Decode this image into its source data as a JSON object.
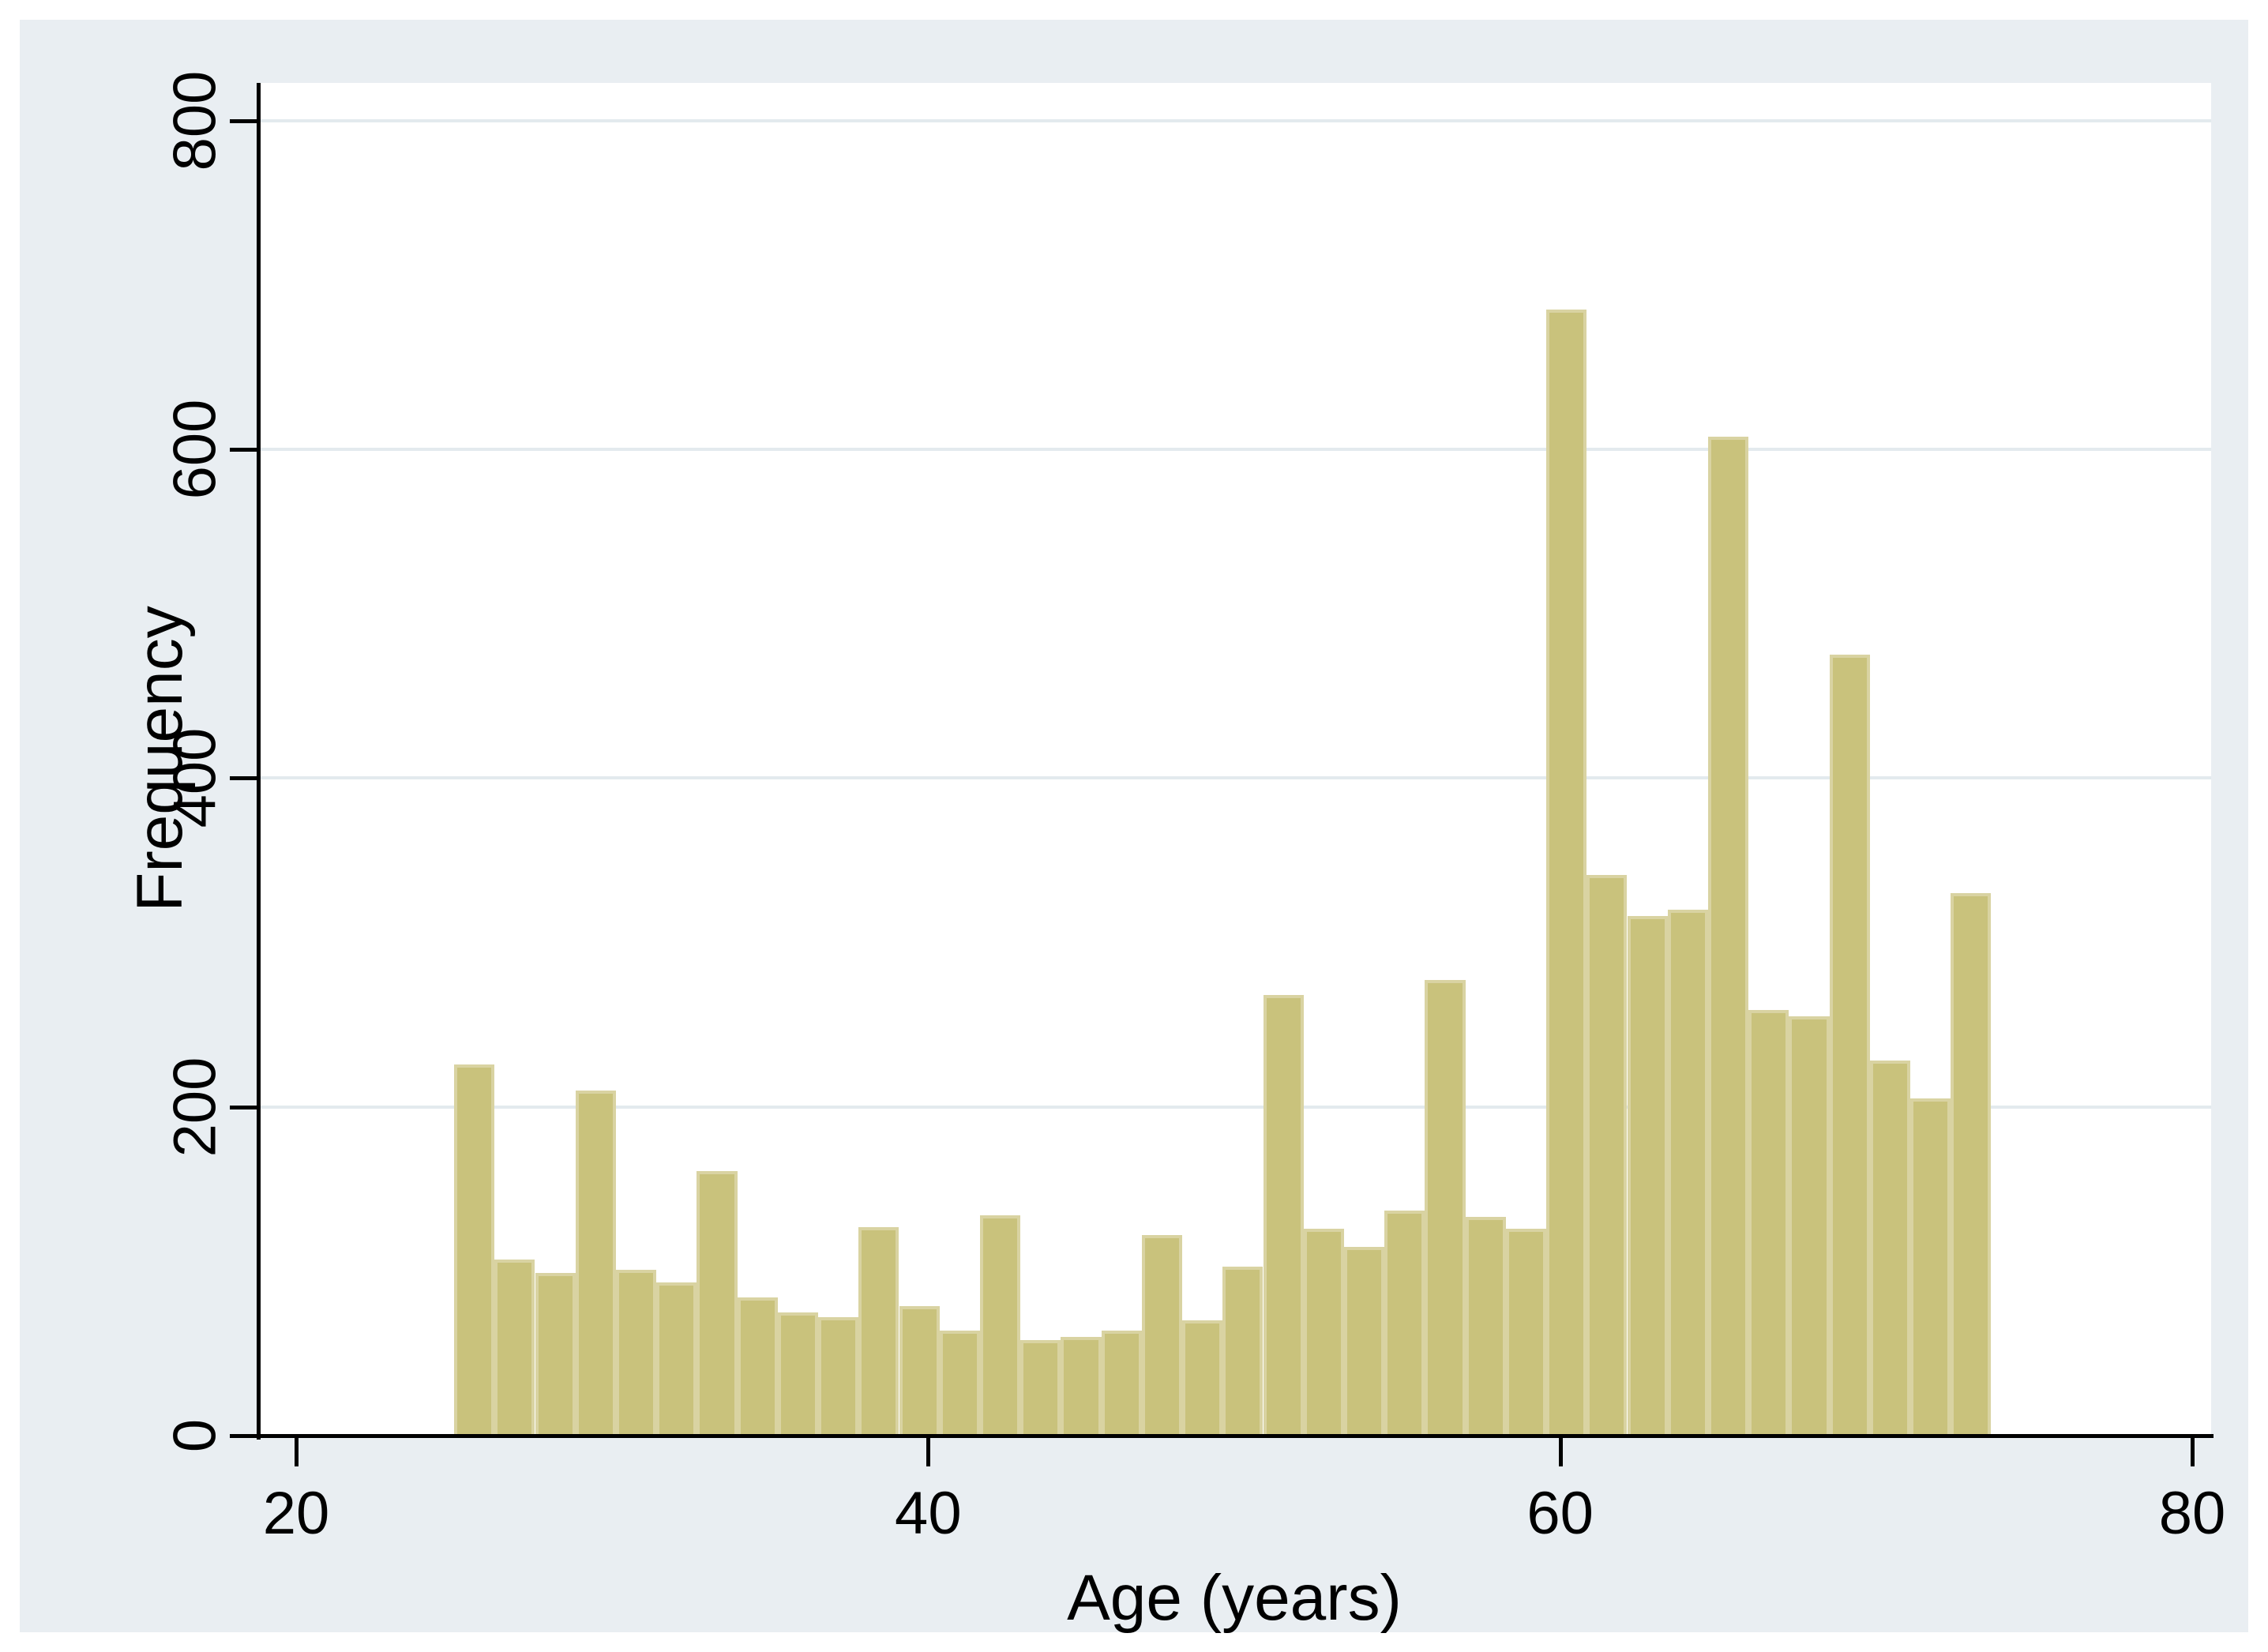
{
  "figure": {
    "xlabel": "Age (years)",
    "ylabel": "Frequency"
  },
  "chart_data": {
    "type": "bar",
    "subtype": "histogram",
    "title": "",
    "xlabel": "Age (years)",
    "ylabel": "Frequency",
    "x_ticks": [
      20,
      40,
      60,
      80
    ],
    "y_ticks": [
      0,
      200,
      400,
      600,
      800
    ],
    "xlim": [
      18.8,
      80.6
    ],
    "ylim": [
      0,
      823
    ],
    "grid": "horizontal-at-y-ticks",
    "legend": "none",
    "bin_start_age": 25.0,
    "bin_width_years": 1.28,
    "values": [
      226,
      107,
      99,
      210,
      101,
      93,
      161,
      84,
      75,
      72,
      127,
      79,
      64,
      134,
      58,
      60,
      64,
      122,
      70,
      103,
      268,
      126,
      115,
      137,
      277,
      133,
      126,
      685,
      341,
      316,
      320,
      608,
      259,
      255,
      475,
      228,
      205,
      330
    ]
  },
  "colors": {
    "page_background": "#ffffff",
    "panel_background": "#e9eef2",
    "plot_background": "#ffffff",
    "gridline": "#e3eaee",
    "bar_fill": "#c9c27c",
    "bar_border": "#d9d3a2",
    "axis": "#000000",
    "text": "#000000"
  }
}
